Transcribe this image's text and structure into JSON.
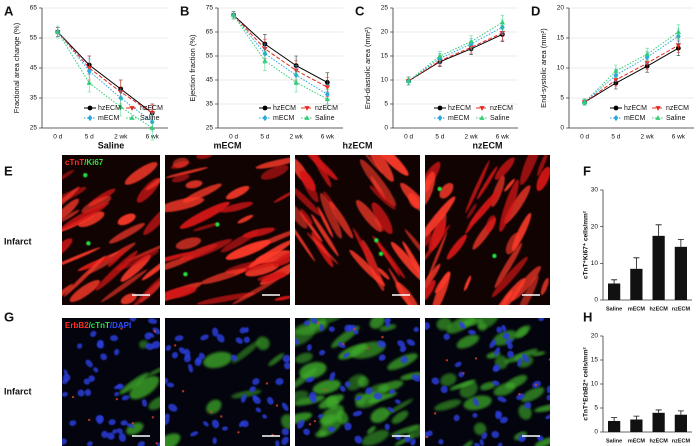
{
  "chart_data": [
    {
      "type": "line",
      "panel": "A",
      "y_label": "Fractional area change (%)",
      "categories": [
        "0 d",
        "5 d",
        "2 wk",
        "6 wk"
      ],
      "ylim": [
        25,
        65
      ],
      "yticks": [
        25,
        35,
        45,
        55,
        65
      ],
      "grid": true,
      "legend": "lower right",
      "series": [
        {
          "name": "hzECM",
          "color": "#000000",
          "marker": "circle",
          "dash": "solid",
          "values": [
            57,
            46,
            38,
            30
          ],
          "errors": [
            1.5,
            3,
            3,
            3
          ]
        },
        {
          "name": "nzECM",
          "color": "#e8281e",
          "marker": "triangle-down",
          "dash": "dashed",
          "values": [
            57,
            45,
            37,
            30
          ],
          "errors": [
            1.5,
            4,
            4,
            3
          ]
        },
        {
          "name": "mECM",
          "color": "#2aa6e0",
          "marker": "diamond",
          "dash": "dotted",
          "values": [
            57,
            44,
            35,
            27
          ],
          "errors": [
            1.5,
            4,
            3,
            3
          ]
        },
        {
          "name": "Saline",
          "color": "#2fcf75",
          "marker": "triangle",
          "dash": "dotted",
          "values": [
            57,
            40,
            32,
            25
          ],
          "errors": [
            2,
            3,
            3,
            4
          ]
        }
      ]
    },
    {
      "type": "line",
      "panel": "B",
      "y_label": "Ejection fraction (%)",
      "categories": [
        "0 d",
        "5 d",
        "2 wk",
        "6 wk"
      ],
      "ylim": [
        25,
        75
      ],
      "yticks": [
        25,
        35,
        45,
        55,
        65,
        75
      ],
      "grid": true,
      "legend": "lower right",
      "series": [
        {
          "name": "hzECM",
          "color": "#000000",
          "marker": "circle",
          "dash": "solid",
          "values": [
            72,
            60,
            51,
            44
          ],
          "errors": [
            1.5,
            4,
            4,
            4
          ]
        },
        {
          "name": "nzECM",
          "color": "#e8281e",
          "marker": "triangle-down",
          "dash": "dashed",
          "values": [
            72,
            58,
            49,
            42
          ],
          "errors": [
            1.5,
            4,
            4,
            4
          ]
        },
        {
          "name": "mECM",
          "color": "#2aa6e0",
          "marker": "diamond",
          "dash": "dotted",
          "values": [
            72,
            56,
            47,
            39
          ],
          "errors": [
            1.5,
            4,
            4,
            4
          ]
        },
        {
          "name": "Saline",
          "color": "#2fcf75",
          "marker": "triangle",
          "dash": "dotted",
          "values": [
            72,
            53,
            44,
            37
          ],
          "errors": [
            1.5,
            4,
            4,
            4
          ]
        }
      ]
    },
    {
      "type": "line",
      "panel": "C",
      "y_label": "End-diastolic area (mm²)",
      "categories": [
        "0 d",
        "5 d",
        "2 wk",
        "6 wk"
      ],
      "ylim": [
        0,
        25
      ],
      "yticks": [
        0,
        5,
        10,
        15,
        20,
        25
      ],
      "grid": true,
      "legend": "lower right",
      "series": [
        {
          "name": "hzECM",
          "color": "#000000",
          "marker": "circle",
          "dash": "solid",
          "values": [
            9.8,
            13.8,
            16.5,
            19.5
          ],
          "errors": [
            0.8,
            1,
            1.2,
            1.5
          ]
        },
        {
          "name": "nzECM",
          "color": "#e8281e",
          "marker": "triangle-down",
          "dash": "dashed",
          "values": [
            9.8,
            14,
            16.8,
            19.8
          ],
          "errors": [
            0.8,
            1,
            1.2,
            1.5
          ]
        },
        {
          "name": "mECM",
          "color": "#2aa6e0",
          "marker": "diamond",
          "dash": "dotted",
          "values": [
            9.8,
            14.5,
            17.5,
            21
          ],
          "errors": [
            0.8,
            1,
            1.2,
            1.5
          ]
        },
        {
          "name": "Saline",
          "color": "#2fcf75",
          "marker": "triangle",
          "dash": "dotted",
          "values": [
            9.8,
            15,
            18,
            22
          ],
          "errors": [
            0.8,
            1,
            1.2,
            1.5
          ]
        }
      ]
    },
    {
      "type": "line",
      "panel": "D",
      "y_label": "End-systolic area (mm²)",
      "categories": [
        "0 d",
        "5 d",
        "2 wk",
        "6 wk"
      ],
      "ylim": [
        0,
        20
      ],
      "yticks": [
        0,
        5,
        10,
        15,
        20
      ],
      "grid": true,
      "legend": "lower right",
      "series": [
        {
          "name": "hzECM",
          "color": "#000000",
          "marker": "circle",
          "dash": "solid",
          "values": [
            4.3,
            7.5,
            10.3,
            13.3
          ],
          "errors": [
            0.5,
            1,
            1,
            1.2
          ]
        },
        {
          "name": "nzECM",
          "color": "#e8281e",
          "marker": "triangle-down",
          "dash": "dashed",
          "values": [
            4.3,
            8,
            10.8,
            13.8
          ],
          "errors": [
            0.5,
            1,
            1,
            1.2
          ]
        },
        {
          "name": "mECM",
          "color": "#2aa6e0",
          "marker": "diamond",
          "dash": "dotted",
          "values": [
            4.3,
            8.8,
            11.8,
            15.3
          ],
          "errors": [
            0.5,
            1,
            1,
            1.2
          ]
        },
        {
          "name": "Saline",
          "color": "#2fcf75",
          "marker": "triangle",
          "dash": "dotted",
          "values": [
            4.3,
            9.5,
            12.3,
            16
          ],
          "errors": [
            0.5,
            1,
            1,
            1.2
          ]
        }
      ]
    },
    {
      "type": "bar",
      "panel": "F",
      "y_label": "cTnT⁺Ki67⁺ cells/mm²",
      "categories": [
        "Saline",
        "mECM",
        "hzECM",
        "nzECM"
      ],
      "values": [
        4.5,
        8.5,
        17.5,
        14.5
      ],
      "errors": [
        1,
        3,
        3,
        2
      ],
      "color": "#111111",
      "ylim": [
        0,
        30
      ],
      "yticks": [
        0,
        10,
        20,
        30
      ],
      "grid": false
    },
    {
      "type": "bar",
      "panel": "H",
      "y_label": "cTnT⁺ErbB2⁺ cells/mm²",
      "categories": [
        "Saline",
        "mECM",
        "hzECM",
        "nzECM"
      ],
      "values": [
        2.3,
        2.6,
        4,
        3.6
      ],
      "errors": [
        0.7,
        0.7,
        0.6,
        0.8
      ],
      "color": "#111111",
      "ylim": [
        0,
        20
      ],
      "yticks": [
        0,
        5,
        10,
        15,
        20
      ],
      "grid": false
    }
  ],
  "images": {
    "panels": [
      "E",
      "G"
    ],
    "columns": [
      "Saline",
      "mECM",
      "hzECM",
      "nzECM"
    ],
    "row_label": "Infarct",
    "stains": [
      [
        "cTnT",
        "/Ki67"
      ],
      [
        "ErbB2",
        "/cTnT",
        "/DAPI"
      ]
    ]
  }
}
